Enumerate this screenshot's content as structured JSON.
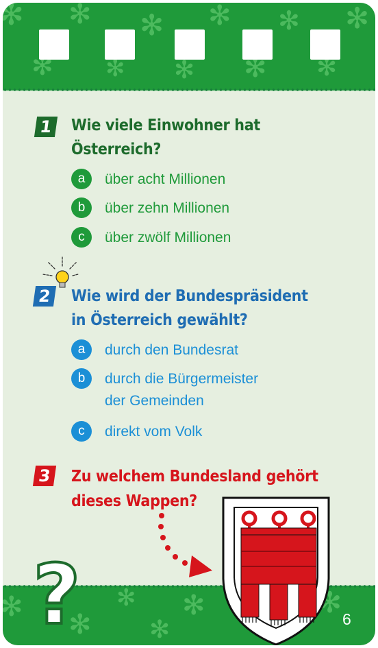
{
  "questions": [
    {
      "number": "1",
      "text_line1": "Wie viele Einwohner hat",
      "text_line2": "Österreich?",
      "options": [
        {
          "letter": "a",
          "text": "über acht Millionen"
        },
        {
          "letter": "b",
          "text": "über zehn Millionen"
        },
        {
          "letter": "c",
          "text": "über zwölf Millionen"
        }
      ]
    },
    {
      "number": "2",
      "text_line1": "Wie wird der Bundespräsident",
      "text_line2": "in Österreich gewählt?",
      "options": [
        {
          "letter": "a",
          "text": "durch den Bundesrat"
        },
        {
          "letter": "b",
          "text": "durch die Bürgermeister",
          "text2": "der Gemeinden"
        },
        {
          "letter": "c",
          "text": "direkt vom Volk"
        }
      ]
    },
    {
      "number": "3",
      "text_line1": "Zu welchem Bundesland gehört",
      "text_line2": "dieses Wappen?"
    }
  ],
  "question_mark": "?",
  "page_number": "6",
  "colors": {
    "green": "#1f9a3a",
    "dark_green": "#1d6b2c",
    "blue": "#1b8fd6",
    "dark_blue": "#1f6db3",
    "red": "#d6151c",
    "background": "#e6efe0"
  },
  "icons": [
    "edelweiss-icon",
    "lightbulb-icon",
    "coat-of-arms-icon",
    "dotted-arrow-icon"
  ]
}
